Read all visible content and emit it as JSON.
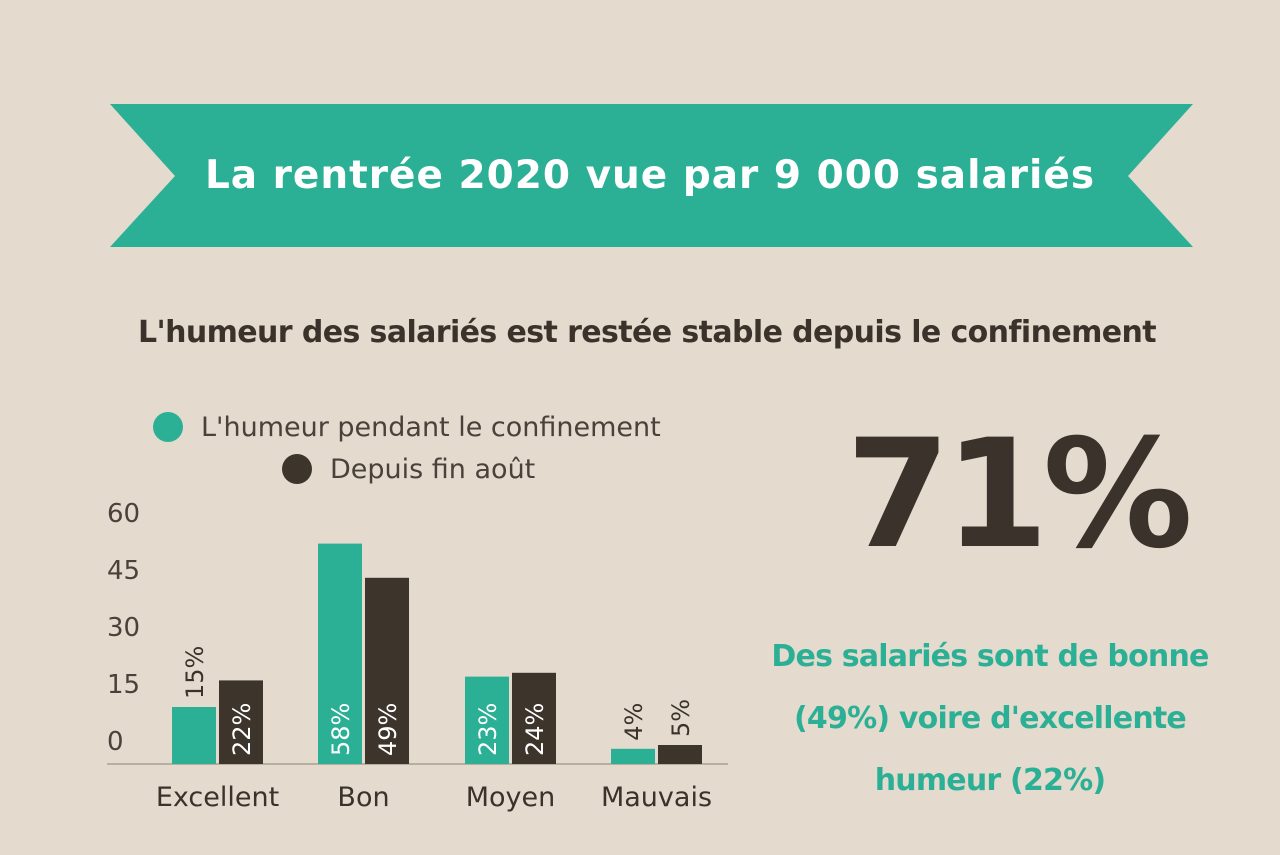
{
  "title": "La rentrée 2020 vue par 9 000 salariés",
  "subtitle": "L'humeur des salariés est restée stable depuis le confinement",
  "colors": {
    "background": "#e4dace",
    "teal": "#2bb096",
    "dark": "#3d342c",
    "text": "#3b332b"
  },
  "highlight": {
    "number": "71%",
    "caption_lines": [
      "Des salariés sont de bonne",
      "(49%) voire d'excellente",
      "humeur (22%)"
    ]
  },
  "chart_data": {
    "type": "bar",
    "categories": [
      "Excellent",
      "Bon",
      "Moyen",
      "Mauvais"
    ],
    "series": [
      {
        "name": "L'humeur pendant le confinement",
        "values": [
          15,
          58,
          23,
          4
        ],
        "labels": [
          "15%",
          "58%",
          "23%",
          "4%"
        ],
        "color": "#2bb096"
      },
      {
        "name": "Depuis fin août",
        "values": [
          22,
          49,
          24,
          5
        ],
        "labels": [
          "22%",
          "49%",
          "24%",
          "5%"
        ],
        "color": "#3d342c"
      }
    ],
    "yticks": [
      0,
      15,
      30,
      45,
      60
    ],
    "ylim": [
      0,
      60
    ],
    "legend": "top-left"
  }
}
